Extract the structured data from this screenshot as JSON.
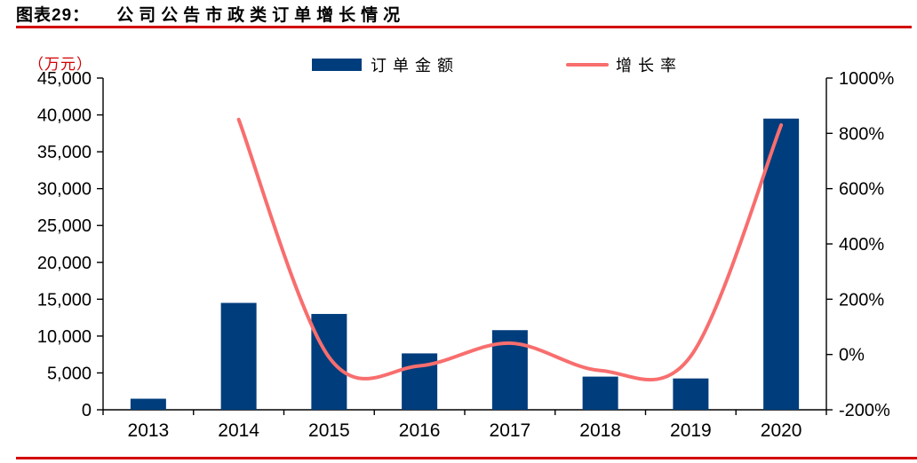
{
  "header": {
    "figure_label": "图表29：",
    "figure_title": "公司公告市政类订单增长情况"
  },
  "chart_data": {
    "type": "combo",
    "title": "公司公告市政类订单增长情况",
    "categories": [
      "2013",
      "2014",
      "2015",
      "2016",
      "2017",
      "2018",
      "2019",
      "2020"
    ],
    "series": [
      {
        "name": "订单金额",
        "type": "bar",
        "axis": "left",
        "unit": "万元",
        "values": [
          1500,
          14500,
          13000,
          7650,
          10800,
          4500,
          4250,
          39500
        ]
      },
      {
        "name": "增长率",
        "type": "line",
        "axis": "right",
        "unit": "%",
        "values": [
          null,
          850,
          -10,
          -41,
          41,
          -58,
          -6,
          830
        ]
      }
    ],
    "y_left": {
      "label": "（万元）",
      "min": 0,
      "max": 45000,
      "step": 5000,
      "tick_labels": [
        "0",
        "5,000",
        "10,000",
        "15,000",
        "20,000",
        "25,000",
        "30,000",
        "35,000",
        "40,000",
        "45,000"
      ]
    },
    "y_right": {
      "min": -200,
      "max": 1000,
      "step": 200,
      "tick_labels": [
        "-200%",
        "0%",
        "200%",
        "400%",
        "600%",
        "800%",
        "1000%"
      ]
    },
    "grid": false,
    "line_smooth": true,
    "legend_position": "top-center"
  },
  "colors": {
    "bar": "#003D7C",
    "line": "#F86E6E",
    "accent_red": "#D40000",
    "axis": "#000000",
    "text": "#000000"
  }
}
